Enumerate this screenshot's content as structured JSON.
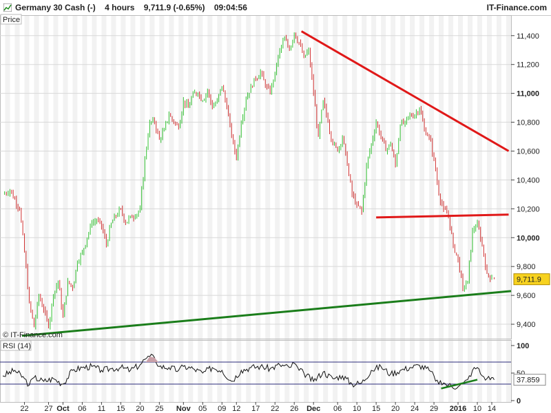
{
  "header": {
    "instrument": "Germany 30 Cash (-)",
    "timeframe": "4 hours",
    "quote": "9,711.9 (-0.65%)",
    "time": "09:04:56",
    "brand": "IT-Finance.com"
  },
  "chart_data": [
    {
      "type": "candlestick",
      "panel_label": "Price",
      "watermark": "© IT-Finance.com",
      "ylim": [
        9300,
        11480
      ],
      "y_ticks": [
        {
          "value": 9400,
          "label": "9,400",
          "bold": false
        },
        {
          "value": 9600,
          "label": "9,600",
          "bold": false
        },
        {
          "value": 9800,
          "label": "9,800",
          "bold": false
        },
        {
          "value": 10000,
          "label": "10,000",
          "bold": true
        },
        {
          "value": 10200,
          "label": "10,200",
          "bold": false
        },
        {
          "value": 10400,
          "label": "10,400",
          "bold": false
        },
        {
          "value": 10600,
          "label": "10,600",
          "bold": false
        },
        {
          "value": 10800,
          "label": "10,800",
          "bold": false
        },
        {
          "value": 11000,
          "label": "11,000",
          "bold": true
        },
        {
          "value": 11200,
          "label": "11,200",
          "bold": false
        },
        {
          "value": 11400,
          "label": "11,400",
          "bold": false
        }
      ],
      "last_price": {
        "value": 9711.9,
        "label": "9,711.9"
      },
      "x_ticks": [
        {
          "label": "22",
          "bold": false
        },
        {
          "label": "27",
          "bold": false
        },
        {
          "label": "Oct",
          "bold": true
        },
        {
          "label": "06",
          "bold": false
        },
        {
          "label": "11",
          "bold": false
        },
        {
          "label": "15",
          "bold": false
        },
        {
          "label": "20",
          "bold": false
        },
        {
          "label": "25",
          "bold": false
        },
        {
          "label": "Nov",
          "bold": true
        },
        {
          "label": "05",
          "bold": false
        },
        {
          "label": "09",
          "bold": false
        },
        {
          "label": "12",
          "bold": false
        },
        {
          "label": "17",
          "bold": false
        },
        {
          "label": "22",
          "bold": false
        },
        {
          "label": "26",
          "bold": false
        },
        {
          "label": "Dec",
          "bold": true
        },
        {
          "label": "06",
          "bold": false
        },
        {
          "label": "10",
          "bold": false
        },
        {
          "label": "15",
          "bold": false
        },
        {
          "label": "20",
          "bold": false
        },
        {
          "label": "24",
          "bold": false
        },
        {
          "label": "29",
          "bold": false
        },
        {
          "label": "2016",
          "bold": true
        },
        {
          "label": "10",
          "bold": false
        },
        {
          "label": "14",
          "bold": false
        }
      ],
      "x_tick_positions": [
        0,
        5,
        8,
        12,
        16,
        20,
        24,
        28,
        33,
        37,
        41,
        44,
        48,
        52,
        56,
        60,
        65,
        69,
        73,
        77,
        81,
        85,
        90,
        94,
        97
      ],
      "x_range": [
        -4.5,
        101
      ],
      "price_path": [
        [
          -4.5,
          10300
        ],
        [
          -3,
          10330
        ],
        [
          -1,
          10200
        ],
        [
          0,
          9900
        ],
        [
          1,
          9550
        ],
        [
          2,
          9380
        ],
        [
          3,
          9600
        ],
        [
          4,
          9500
        ],
        [
          5,
          9380
        ],
        [
          6,
          9600
        ],
        [
          7,
          9700
        ],
        [
          8,
          9450
        ],
        [
          9,
          9700
        ],
        [
          10,
          9650
        ],
        [
          11,
          9830
        ],
        [
          12,
          9900
        ],
        [
          13,
          10000
        ],
        [
          14,
          10100
        ],
        [
          15,
          10120
        ],
        [
          16,
          10080
        ],
        [
          17,
          9950
        ],
        [
          18,
          10100
        ],
        [
          19,
          10150
        ],
        [
          20,
          10200
        ],
        [
          21,
          10100
        ],
        [
          22,
          10150
        ],
        [
          23,
          10150
        ],
        [
          24,
          10200
        ],
        [
          25,
          10550
        ],
        [
          26,
          10800
        ],
        [
          27,
          10800
        ],
        [
          28,
          10680
        ],
        [
          29,
          10750
        ],
        [
          30,
          10850
        ],
        [
          31,
          10800
        ],
        [
          32,
          10760
        ],
        [
          33,
          10950
        ],
        [
          34,
          10900
        ],
        [
          35,
          11000
        ],
        [
          36,
          11000
        ],
        [
          37,
          10950
        ],
        [
          38,
          11020
        ],
        [
          39,
          10900
        ],
        [
          40,
          10950
        ],
        [
          41,
          11050
        ],
        [
          42,
          10900
        ],
        [
          43,
          10700
        ],
        [
          44,
          10550
        ],
        [
          45,
          10800
        ],
        [
          46,
          10960
        ],
        [
          47,
          11050
        ],
        [
          48,
          11100
        ],
        [
          49,
          11150
        ],
        [
          50,
          11050
        ],
        [
          51,
          11000
        ],
        [
          52,
          11150
        ],
        [
          53,
          11300
        ],
        [
          54,
          11380
        ],
        [
          55,
          11300
        ],
        [
          56,
          11420
        ],
        [
          57,
          11350
        ],
        [
          58,
          11250
        ],
        [
          59,
          11300
        ],
        [
          60,
          11000
        ],
        [
          61,
          10700
        ],
        [
          62,
          10950
        ],
        [
          63,
          10800
        ],
        [
          64,
          10650
        ],
        [
          65,
          10600
        ],
        [
          66,
          10700
        ],
        [
          67,
          10500
        ],
        [
          68,
          10300
        ],
        [
          69,
          10230
        ],
        [
          70,
          10180
        ],
        [
          71,
          10500
        ],
        [
          72,
          10650
        ],
        [
          73,
          10800
        ],
        [
          74,
          10700
        ],
        [
          75,
          10600
        ],
        [
          76,
          10650
        ],
        [
          77,
          10500
        ],
        [
          78,
          10780
        ],
        [
          79,
          10800
        ],
        [
          80,
          10850
        ],
        [
          81,
          10850
        ],
        [
          82,
          10900
        ],
        [
          83,
          10750
        ],
        [
          84,
          10700
        ],
        [
          85,
          10550
        ],
        [
          86,
          10300
        ],
        [
          87,
          10200
        ],
        [
          88,
          10150
        ],
        [
          89,
          9950
        ],
        [
          90,
          9850
        ],
        [
          91,
          9650
        ],
        [
          92,
          9700
        ],
        [
          93,
          10050
        ],
        [
          94,
          10100
        ],
        [
          95,
          9950
        ],
        [
          96,
          9750
        ],
        [
          97,
          9720
        ],
        [
          97.5,
          9711.9
        ]
      ],
      "trendlines": [
        {
          "name": "Resistance",
          "color": "#e01818",
          "points": [
            [
              57.5,
              11430
            ],
            [
              100.5,
              10600
            ]
          ]
        },
        {
          "name": "Support",
          "color": "#e01818",
          "points": [
            [
              73,
              10140
            ],
            [
              100.5,
              10160
            ]
          ]
        },
        {
          "name": "Uptrend",
          "color": "#1a7d1a",
          "points": [
            [
              -0.5,
              9320
            ],
            [
              101,
              9630
            ]
          ]
        }
      ],
      "colors": {
        "up": "#2fbf2f",
        "down": "#cf2f2f",
        "grid": "#d8d8d8",
        "stripe": "#f2f2f2"
      }
    },
    {
      "type": "line",
      "panel_label": "RSI (14)",
      "ylim": [
        0,
        100
      ],
      "y_ticks": [
        {
          "value": 0,
          "label": "0",
          "bold": true
        },
        {
          "value": 50,
          "label": "50",
          "bold": false
        },
        {
          "value": 100,
          "label": "100",
          "bold": true
        }
      ],
      "levels": [
        30,
        70
      ],
      "last_value": {
        "value": 37.859,
        "label": "37.859"
      },
      "rsi_path": [
        [
          -4.5,
          45
        ],
        [
          -2,
          55
        ],
        [
          0,
          40
        ],
        [
          1,
          28
        ],
        [
          2,
          42
        ],
        [
          4,
          35
        ],
        [
          6,
          40
        ],
        [
          8,
          30
        ],
        [
          10,
          55
        ],
        [
          12,
          60
        ],
        [
          14,
          62
        ],
        [
          16,
          55
        ],
        [
          18,
          58
        ],
        [
          20,
          60
        ],
        [
          22,
          55
        ],
        [
          24,
          65
        ],
        [
          25,
          75
        ],
        [
          26,
          80
        ],
        [
          27,
          78
        ],
        [
          28,
          62
        ],
        [
          30,
          60
        ],
        [
          32,
          55
        ],
        [
          33,
          62
        ],
        [
          35,
          58
        ],
        [
          37,
          50
        ],
        [
          39,
          60
        ],
        [
          41,
          55
        ],
        [
          43,
          35
        ],
        [
          45,
          55
        ],
        [
          47,
          60
        ],
        [
          49,
          62
        ],
        [
          51,
          58
        ],
        [
          53,
          65
        ],
        [
          55,
          60
        ],
        [
          56,
          68
        ],
        [
          57,
          55
        ],
        [
          58,
          50
        ],
        [
          60,
          35
        ],
        [
          62,
          52
        ],
        [
          64,
          40
        ],
        [
          66,
          45
        ],
        [
          68,
          30
        ],
        [
          70,
          32
        ],
        [
          72,
          55
        ],
        [
          74,
          62
        ],
        [
          76,
          48
        ],
        [
          78,
          55
        ],
        [
          80,
          60
        ],
        [
          82,
          64
        ],
        [
          84,
          55
        ],
        [
          85,
          45
        ],
        [
          86,
          30
        ],
        [
          87,
          32
        ],
        [
          88,
          28
        ],
        [
          90,
          25
        ],
        [
          91,
          30
        ],
        [
          92,
          38
        ],
        [
          93,
          55
        ],
        [
          94,
          60
        ],
        [
          95,
          45
        ],
        [
          96,
          40
        ],
        [
          97,
          42
        ],
        [
          97.5,
          37.859
        ]
      ],
      "trendlines": [
        {
          "name": "RSI uptrend",
          "color": "#1a7d1a",
          "points": [
            [
              86.5,
              22
            ],
            [
              94,
              38
            ]
          ]
        }
      ]
    }
  ]
}
